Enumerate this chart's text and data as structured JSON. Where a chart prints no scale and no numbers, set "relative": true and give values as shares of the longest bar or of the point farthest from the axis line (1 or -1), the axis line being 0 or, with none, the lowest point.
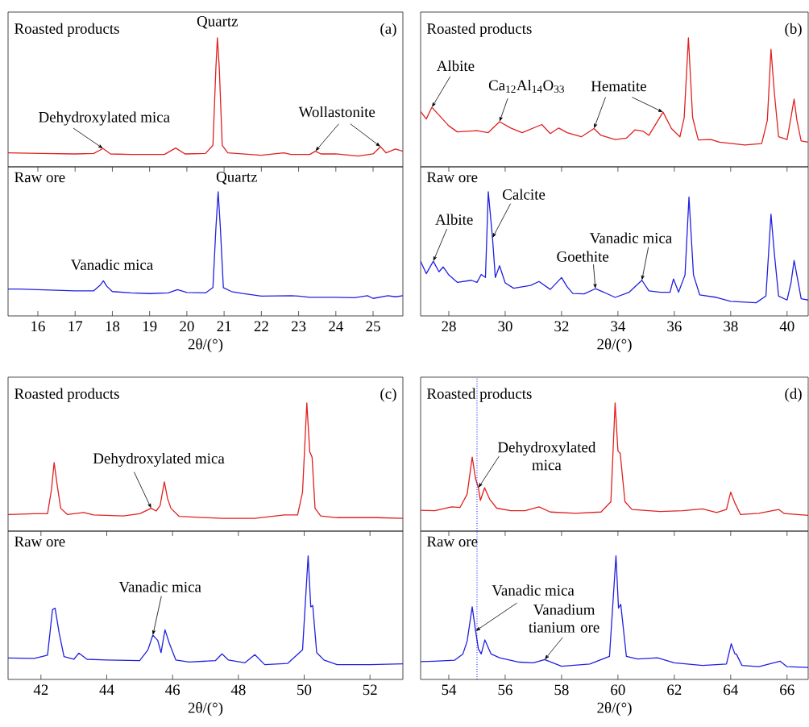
{
  "chart_data": [
    {
      "type": "line",
      "relative": true,
      "title": "Roasted products",
      "xlim": [
        15.2,
        25.8
      ],
      "tick_labels": false,
      "series": [
        {
          "color": "#e02020",
          "x": [
            15.2,
            16.1,
            17.0,
            17.5,
            17.75,
            17.95,
            18.5,
            19.4,
            19.7,
            19.95,
            20.5,
            20.7,
            20.78,
            20.82,
            20.87,
            20.95,
            21.1,
            22.0,
            22.6,
            22.8,
            23.3,
            23.45,
            23.6,
            24.0,
            24.6,
            25.0,
            25.2,
            25.35,
            25.6,
            25.8
          ],
          "values": [
            0.108,
            0.104,
            0.1,
            0.104,
            0.142,
            0.1,
            0.096,
            0.096,
            0.146,
            0.1,
            0.104,
            0.167,
            0.771,
            1.0,
            0.771,
            0.167,
            0.108,
            0.09,
            0.108,
            0.096,
            0.096,
            0.121,
            0.1,
            0.1,
            0.083,
            0.1,
            0.156,
            0.108,
            0.138,
            0.121
          ]
        }
      ],
      "annotations": [
        {
          "text": "Quartz",
          "x": 20.82,
          "y": 1.0
        },
        {
          "text": "Dehydroxylated mica",
          "x": 17.75,
          "y": 0.142
        },
        {
          "text": "Wollastonite",
          "x": 23.45,
          "y": 0.121
        },
        "(a)"
      ]
    },
    {
      "type": "line",
      "relative": true,
      "title": "Raw ore",
      "xlim": [
        15.2,
        25.8
      ],
      "xticks": [
        16,
        17,
        18,
        19,
        20,
        21,
        22,
        23,
        24,
        25
      ],
      "xlabel": "2θ/(°)",
      "tick_labels": "x",
      "series": [
        {
          "color": "#2020e0",
          "x": [
            15.2,
            15.5,
            16.0,
            17.0,
            17.5,
            17.68,
            17.76,
            17.85,
            18.0,
            18.5,
            19.0,
            19.5,
            19.75,
            20.0,
            20.5,
            20.7,
            20.78,
            20.84,
            20.9,
            20.98,
            21.2,
            21.5,
            22.0,
            22.8,
            23.0,
            23.3,
            24.0,
            24.5,
            24.85,
            25.0,
            25.4,
            25.6,
            25.8
          ],
          "values": [
            0.217,
            0.217,
            0.211,
            0.202,
            0.202,
            0.25,
            0.283,
            0.239,
            0.196,
            0.185,
            0.18,
            0.185,
            0.211,
            0.189,
            0.185,
            0.228,
            0.707,
            1.0,
            0.707,
            0.228,
            0.196,
            0.18,
            0.159,
            0.163,
            0.159,
            0.15,
            0.15,
            0.146,
            0.163,
            0.141,
            0.163,
            0.154,
            0.163
          ]
        }
      ],
      "annotations": [
        {
          "text": "Quartz",
          "x": 20.84,
          "y": 1.0
        },
        {
          "text": "Vanadic mica",
          "x": 17.76,
          "y": 0.283
        }
      ]
    },
    {
      "type": "line",
      "relative": true,
      "title": "Roasted products",
      "xlim": [
        27,
        40.75
      ],
      "tick_labels": false,
      "series": [
        {
          "color": "#e02020",
          "x": [
            27.0,
            27.2,
            27.4,
            27.6,
            28.0,
            28.3,
            29.0,
            29.4,
            29.8,
            30.2,
            30.6,
            31.3,
            31.6,
            31.9,
            32.2,
            32.7,
            33.15,
            33.4,
            33.9,
            34.3,
            34.6,
            34.9,
            35.1,
            35.6,
            35.9,
            36.2,
            36.35,
            36.5,
            36.65,
            36.85,
            37.3,
            37.6,
            38.5,
            39.1,
            39.3,
            39.43,
            39.55,
            39.7,
            40.0,
            40.12,
            40.25,
            40.35,
            40.5,
            40.75
          ],
          "values": [
            0.428,
            0.371,
            0.462,
            0.413,
            0.318,
            0.271,
            0.28,
            0.265,
            0.35,
            0.301,
            0.265,
            0.328,
            0.258,
            0.301,
            0.265,
            0.233,
            0.297,
            0.244,
            0.212,
            0.222,
            0.286,
            0.275,
            0.244,
            0.424,
            0.297,
            0.233,
            0.381,
            1.0,
            0.381,
            0.208,
            0.212,
            0.191,
            0.169,
            0.18,
            0.36,
            0.911,
            0.572,
            0.233,
            0.212,
            0.36,
            0.525,
            0.36,
            0.201,
            0.191
          ]
        }
      ],
      "annotations": [
        {
          "text": "Albite",
          "x": 27.4,
          "y": 0.462
        },
        {
          "text": "Ca$_{12}$Al$_{14}$O$_{33}$",
          "x": 29.8,
          "y": 0.35
        },
        {
          "text": "Hematite",
          "x": 33.15,
          "y": 0.297
        },
        "(b)"
      ]
    },
    {
      "type": "line",
      "relative": true,
      "title": "Raw ore",
      "xlim": [
        27,
        40.75
      ],
      "xticks": [
        28,
        30,
        32,
        34,
        36,
        38,
        40
      ],
      "xlabel": "2θ/(°)",
      "tick_labels": "x",
      "series": [
        {
          "color": "#2020e0",
          "x": [
            27.0,
            27.2,
            27.45,
            27.65,
            27.8,
            28.0,
            28.3,
            28.8,
            29.0,
            29.15,
            29.3,
            29.4,
            29.55,
            29.65,
            29.8,
            30.0,
            30.3,
            30.9,
            31.2,
            31.6,
            32.0,
            32.2,
            32.4,
            32.8,
            33.2,
            33.5,
            33.9,
            34.4,
            34.85,
            35.1,
            35.5,
            35.85,
            35.97,
            36.15,
            36.38,
            36.52,
            36.68,
            36.9,
            37.5,
            38.0,
            38.9,
            39.25,
            39.43,
            39.55,
            39.7,
            40.0,
            40.14,
            40.25,
            40.38,
            40.5,
            40.75
          ],
          "values": [
            0.44,
            0.34,
            0.44,
            0.355,
            0.394,
            0.33,
            0.27,
            0.287,
            0.27,
            0.334,
            0.309,
            1.0,
            0.628,
            0.309,
            0.404,
            0.266,
            0.223,
            0.245,
            0.277,
            0.213,
            0.309,
            0.234,
            0.181,
            0.177,
            0.219,
            0.191,
            0.149,
            0.191,
            0.287,
            0.202,
            0.191,
            0.191,
            0.298,
            0.191,
            0.33,
            0.957,
            0.33,
            0.17,
            0.149,
            0.117,
            0.106,
            0.16,
            0.819,
            0.5,
            0.16,
            0.128,
            0.266,
            0.447,
            0.287,
            0.138,
            0.128
          ]
        }
      ],
      "annotations": [
        {
          "text": "Albite",
          "x": 27.45,
          "y": 0.44
        },
        {
          "text": "Calcite",
          "x": 29.55,
          "y": 0.628
        },
        {
          "text": "Goethite",
          "x": 33.2,
          "y": 0.219
        },
        {
          "text": "Vanadic mica",
          "x": 34.85,
          "y": 0.287
        }
      ]
    },
    {
      "type": "line",
      "relative": true,
      "title": "Roasted products",
      "xlim": [
        41,
        53
      ],
      "tick_labels": false,
      "series": [
        {
          "color": "#e02020",
          "x": [
            41.0,
            41.8,
            42.2,
            42.32,
            42.4,
            42.5,
            42.6,
            42.8,
            43.3,
            43.6,
            44.5,
            45.0,
            45.35,
            45.5,
            45.62,
            45.75,
            45.85,
            45.95,
            46.2,
            47.5,
            48.5,
            49.4,
            49.8,
            49.95,
            50.08,
            50.17,
            50.24,
            50.33,
            50.5,
            51.0,
            52.2,
            53.0
          ],
          "values": [
            0.13,
            0.136,
            0.136,
            0.325,
            0.535,
            0.346,
            0.178,
            0.13,
            0.145,
            0.126,
            0.119,
            0.136,
            0.178,
            0.157,
            0.199,
            0.384,
            0.252,
            0.178,
            0.115,
            0.099,
            0.099,
            0.126,
            0.126,
            0.304,
            1.0,
            0.618,
            0.577,
            0.178,
            0.119,
            0.105,
            0.105,
            0.099
          ]
        }
      ],
      "annotations": [
        {
          "text": "Dehydroxylated mica",
          "x": 45.35,
          "y": 0.178
        },
        "(c)"
      ]
    },
    {
      "type": "line",
      "relative": true,
      "title": "Raw ore",
      "xlim": [
        41,
        53
      ],
      "xticks": [
        42,
        44,
        46,
        48,
        50,
        52
      ],
      "xlabel": "2θ/(°)",
      "tick_labels": "x",
      "series": [
        {
          "color": "#2020e0",
          "x": [
            41.0,
            41.8,
            42.2,
            42.35,
            42.43,
            42.55,
            42.7,
            43.0,
            43.15,
            43.4,
            44.0,
            45.0,
            45.25,
            45.4,
            45.55,
            45.65,
            45.77,
            45.9,
            46.1,
            46.5,
            47.3,
            47.5,
            47.7,
            48.2,
            48.5,
            48.8,
            49.5,
            49.95,
            50.12,
            50.2,
            50.26,
            50.38,
            50.6,
            51.0,
            52.0,
            53.0
          ],
          "values": [
            0.174,
            0.17,
            0.196,
            0.565,
            0.576,
            0.38,
            0.185,
            0.163,
            0.213,
            0.163,
            0.157,
            0.152,
            0.239,
            0.359,
            0.315,
            0.217,
            0.402,
            0.293,
            0.157,
            0.141,
            0.152,
            0.207,
            0.157,
            0.135,
            0.2,
            0.12,
            0.13,
            0.239,
            1.0,
            0.587,
            0.598,
            0.217,
            0.157,
            0.12,
            0.12,
            0.126
          ]
        }
      ],
      "annotations": [
        {
          "text": "Vanadic mica",
          "x": 45.4,
          "y": 0.359
        }
      ]
    },
    {
      "type": "line",
      "relative": true,
      "title": "Roasted products",
      "xlim": [
        53,
        66.75
      ],
      "tick_labels": false,
      "series": [
        {
          "color": "#e02020",
          "x": [
            53.0,
            53.5,
            54.1,
            54.4,
            54.65,
            54.83,
            54.95,
            55.05,
            55.12,
            55.27,
            55.45,
            55.7,
            56.2,
            56.7,
            57.2,
            57.6,
            58.5,
            59.4,
            59.75,
            59.9,
            60.0,
            60.08,
            60.25,
            60.5,
            61.5,
            62.3,
            63.0,
            63.5,
            63.85,
            64.0,
            64.15,
            64.35,
            65.0,
            65.7,
            65.9,
            66.75
          ],
          "values": [
            0.163,
            0.159,
            0.189,
            0.185,
            0.288,
            0.577,
            0.408,
            0.338,
            0.239,
            0.338,
            0.249,
            0.179,
            0.159,
            0.159,
            0.189,
            0.149,
            0.139,
            0.149,
            0.229,
            1.0,
            0.626,
            0.606,
            0.229,
            0.169,
            0.153,
            0.159,
            0.173,
            0.145,
            0.169,
            0.304,
            0.219,
            0.129,
            0.139,
            0.169,
            0.137,
            0.123
          ]
        }
      ],
      "ref_lines": [
        {
          "axis": "x",
          "value": 55,
          "color": "#0000ff",
          "line_style": "dotted"
        }
      ],
      "annotations": [
        {
          "text": "Dehydroxylated mica",
          "x": 55.05,
          "y": 0.338
        },
        "(d)"
      ]
    },
    {
      "type": "line",
      "relative": true,
      "title": "Raw ore",
      "xlim": [
        53,
        66.75
      ],
      "xticks": [
        54,
        56,
        58,
        60,
        62,
        64,
        66
      ],
      "xlabel": "2θ/(°)",
      "tick_labels": "x",
      "series": [
        {
          "color": "#2020e0",
          "x": [
            53.0,
            53.5,
            54.2,
            54.5,
            54.65,
            54.83,
            54.95,
            55.05,
            55.15,
            55.28,
            55.5,
            55.8,
            56.5,
            57.0,
            57.4,
            58.0,
            59.0,
            59.7,
            59.93,
            60.02,
            60.1,
            60.3,
            60.7,
            61.4,
            62.0,
            63.0,
            63.85,
            64.02,
            64.15,
            64.2,
            64.4,
            65.0,
            65.75,
            66.0,
            66.75
          ],
          "values": [
            0.144,
            0.148,
            0.155,
            0.206,
            0.309,
            0.588,
            0.392,
            0.247,
            0.206,
            0.32,
            0.206,
            0.175,
            0.14,
            0.134,
            0.161,
            0.107,
            0.124,
            0.186,
            1.0,
            0.577,
            0.608,
            0.186,
            0.165,
            0.175,
            0.134,
            0.113,
            0.124,
            0.289,
            0.206,
            0.206,
            0.113,
            0.103,
            0.148,
            0.103,
            0.097
          ]
        }
      ],
      "ref_lines": [
        {
          "axis": "x",
          "value": 55,
          "color": "#0000ff",
          "line_style": "dotted"
        }
      ],
      "annotations": [
        {
          "text": "Vanadic mica",
          "x": 54.95,
          "y": 0.392
        },
        {
          "text": "Vanadium tianium ore",
          "x": 57.4,
          "y": 0.161
        }
      ]
    }
  ]
}
